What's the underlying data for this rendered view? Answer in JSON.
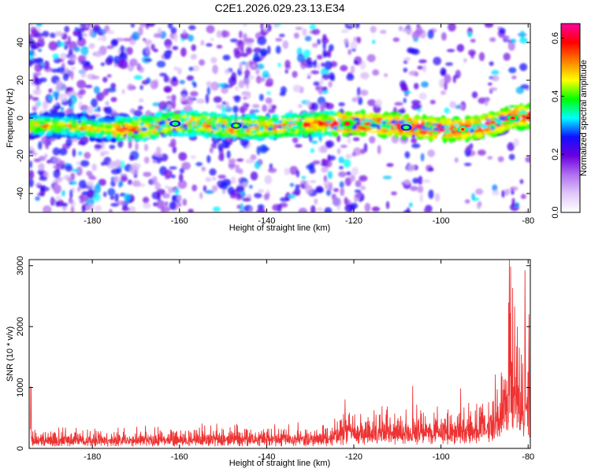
{
  "title": "C2E1.2026.029.23.13.E34",
  "chart_data": [
    {
      "type": "heatmap",
      "xlabel": "Height of straight line (km)",
      "ylabel": "Frequency (Hz)",
      "xlim": [
        -194.5,
        -79.5
      ],
      "ylim": [
        -50,
        50
      ],
      "xticks": [
        -180,
        -160,
        -140,
        -120,
        -100,
        -80
      ],
      "yticks": [
        -40,
        -20,
        0,
        20,
        40
      ],
      "colorbar": {
        "label": "Normalized spectral amplitude",
        "range": [
          0,
          0.65
        ],
        "ticks": [
          0.0,
          0.2,
          0.4,
          0.6
        ],
        "tick_labels": [
          "0.0",
          "0.2",
          "0.4",
          "0.6"
        ],
        "colors": [
          "#ffffff",
          "#e0c8f8",
          "#b070f0",
          "#6a00e0",
          "#1010ff",
          "#00ffff",
          "#00ff00",
          "#ffff00",
          "#ff8000",
          "#ff0000",
          "#ff00a0"
        ]
      },
      "ridge": {
        "frequency_hz": 0,
        "knots": [
          {
            "x": -194,
            "y": -4
          },
          {
            "x": -186,
            "y": -4
          },
          {
            "x": -178,
            "y": -6
          },
          {
            "x": -170,
            "y": -6
          },
          {
            "x": -162,
            "y": -3
          },
          {
            "x": -155,
            "y": -3
          },
          {
            "x": -148,
            "y": -5
          },
          {
            "x": -140,
            "y": -5
          },
          {
            "x": -134,
            "y": -4
          },
          {
            "x": -128,
            "y": -3
          },
          {
            "x": -122,
            "y": -3
          },
          {
            "x": -116,
            "y": -3
          },
          {
            "x": -110,
            "y": -4
          },
          {
            "x": -105,
            "y": -5
          },
          {
            "x": -100,
            "y": -6
          },
          {
            "x": -96,
            "y": -6
          },
          {
            "x": -92,
            "y": -5
          },
          {
            "x": -88,
            "y": -3
          },
          {
            "x": -84,
            "y": 0
          },
          {
            "x": -80,
            "y": 1
          }
        ],
        "hotspots": [
          {
            "x": -121.5,
            "y": -3,
            "value": 0.65
          },
          {
            "x": -95,
            "y": -6,
            "value": 0.58
          },
          {
            "x": -83.5,
            "y": 0,
            "value": 0.62
          },
          {
            "x": -147,
            "y": -4,
            "value": 0.45
          },
          {
            "x": -161,
            "y": -3,
            "value": 0.4
          },
          {
            "x": -108,
            "y": -5,
            "value": 0.42
          }
        ]
      }
    },
    {
      "type": "line",
      "xlabel": "Height of straight line (km)",
      "ylabel": "SNR (10 * v/v)",
      "xlim": [
        -194.5,
        -79.5
      ],
      "ylim": [
        0,
        3100
      ],
      "xticks": [
        -180,
        -160,
        -140,
        -120,
        -100,
        -80
      ],
      "yticks": [
        0,
        1000,
        2000,
        3000
      ],
      "series": [
        {
          "color": "#ee3333",
          "envelope": [
            {
              "x": -194,
              "base": 150,
              "peak": 330
            },
            {
              "x": -165,
              "base": 160,
              "peak": 380
            },
            {
              "x": -150,
              "base": 180,
              "peak": 420
            },
            {
              "x": -135,
              "base": 180,
              "peak": 420
            },
            {
              "x": -125,
              "base": 190,
              "peak": 450
            },
            {
              "x": -122,
              "base": 300,
              "peak": 800
            },
            {
              "x": -115,
              "base": 300,
              "peak": 750
            },
            {
              "x": -108,
              "base": 300,
              "peak": 760
            },
            {
              "x": -100,
              "base": 320,
              "peak": 680
            },
            {
              "x": -92,
              "base": 360,
              "peak": 800
            },
            {
              "x": -87,
              "base": 520,
              "peak": 1300
            },
            {
              "x": -85,
              "base": 900,
              "peak": 2500
            },
            {
              "x": -84,
              "base": 1200,
              "peak": 3050
            },
            {
              "x": -82,
              "base": 900,
              "peak": 2200
            },
            {
              "x": -80,
              "base": 600,
              "peak": 2900
            }
          ],
          "spikes": [
            {
              "x": -122,
              "y": 800
            },
            {
              "x": -106.5,
              "y": 1020
            },
            {
              "x": -95.5,
              "y": 980
            },
            {
              "x": -84.3,
              "y": 3100
            },
            {
              "x": -80.7,
              "y": 2920
            },
            {
              "x": -79.8,
              "y": 2200
            }
          ]
        }
      ]
    }
  ]
}
